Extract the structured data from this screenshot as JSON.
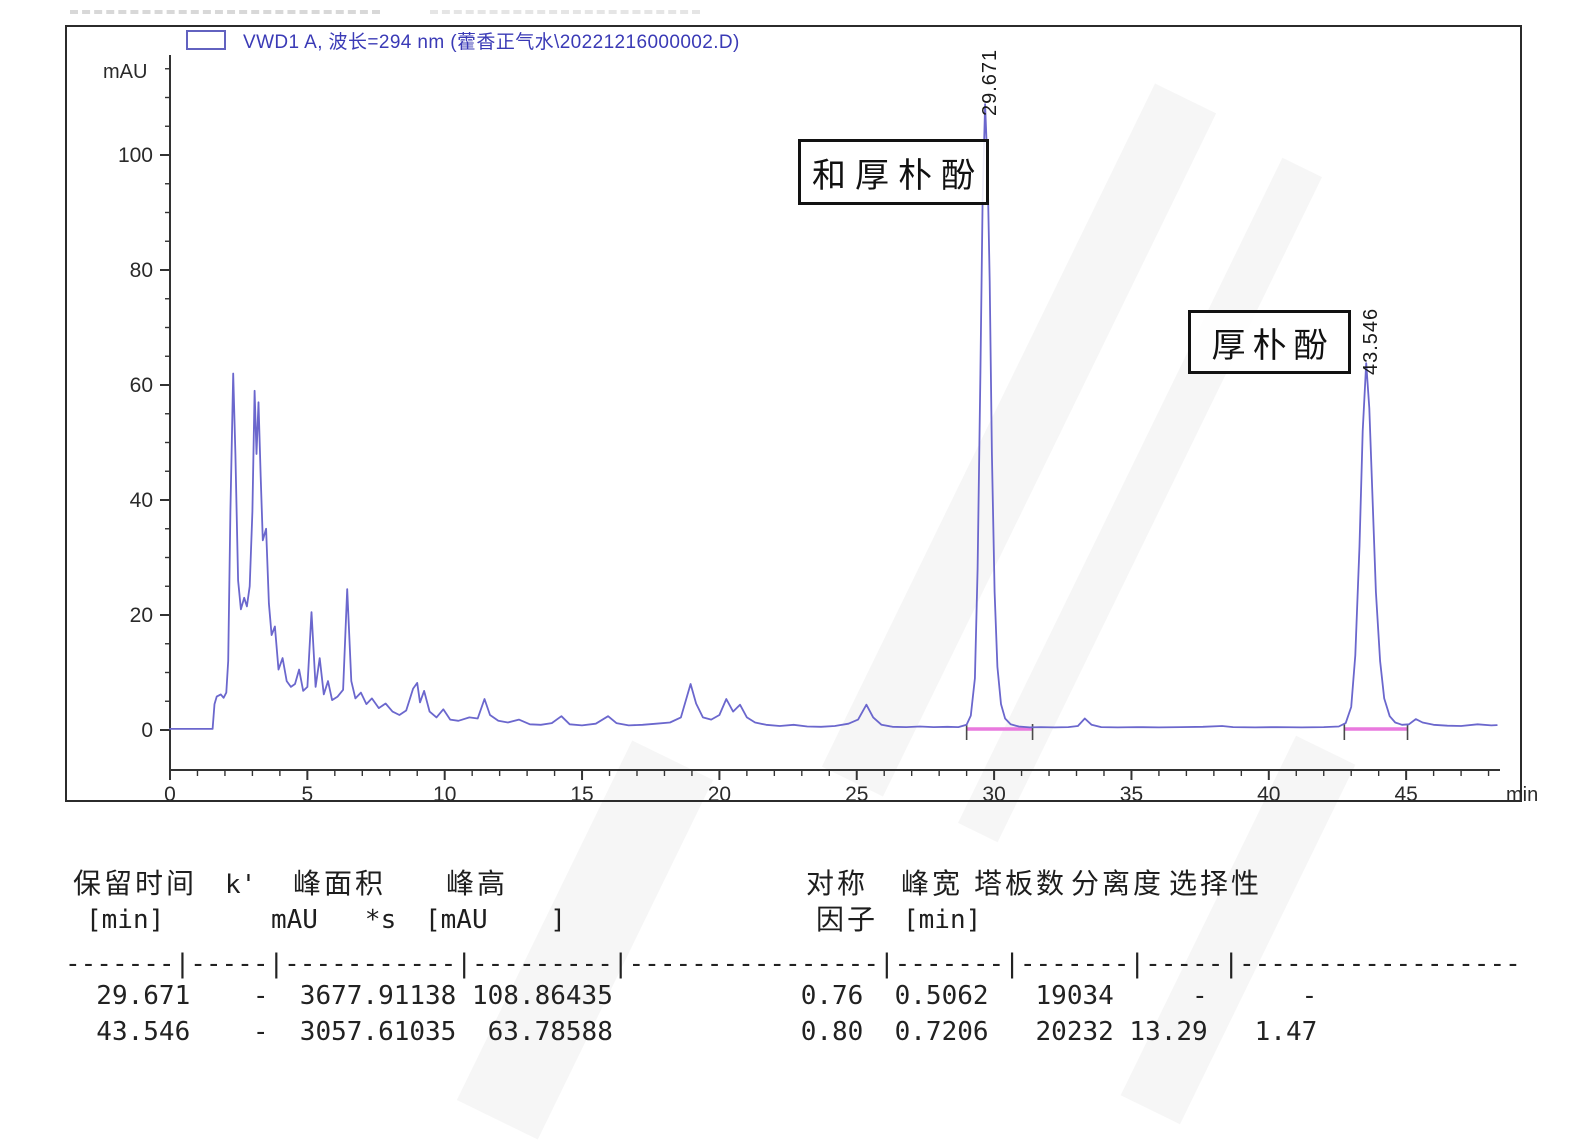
{
  "chart_data": {
    "type": "line",
    "title": "VWD1 A, 波长=294 nm (藿香正气水\\20221216000002.D)",
    "xlabel": "min",
    "ylabel": "mAU",
    "xlim": [
      0,
      48.3
    ],
    "ylim": [
      -2,
      116.5
    ],
    "x_major_ticks": [
      0,
      5,
      10,
      15,
      20,
      25,
      30,
      35,
      40,
      45
    ],
    "y_major_ticks": [
      0,
      20,
      40,
      60,
      80,
      100
    ],
    "x_minor_step": 1,
    "y_minor_step": 5,
    "grid": false,
    "legend_position": "top-left",
    "trace_color": "#6b67cd",
    "integration_color": "#e979de",
    "peaks": [
      {
        "rt": 29.671,
        "rt_label": "29.671",
        "height_mau": 108.86435,
        "compound": "和厚朴酚"
      },
      {
        "rt": 43.546,
        "rt_label": "43.546",
        "height_mau": 63.78588,
        "compound": "厚朴酚"
      }
    ],
    "integration_baselines_min": [
      [
        29.0,
        31.4
      ],
      [
        42.75,
        45.05
      ]
    ],
    "points": [
      [
        0,
        0.2
      ],
      [
        1.55,
        0.2
      ],
      [
        1.62,
        4.5
      ],
      [
        1.7,
        5.8
      ],
      [
        1.85,
        6.2
      ],
      [
        1.95,
        5.6
      ],
      [
        2.05,
        6.5
      ],
      [
        2.12,
        12
      ],
      [
        2.2,
        38
      ],
      [
        2.3,
        62
      ],
      [
        2.38,
        48
      ],
      [
        2.48,
        26
      ],
      [
        2.58,
        21
      ],
      [
        2.7,
        23
      ],
      [
        2.8,
        21.5
      ],
      [
        2.9,
        25
      ],
      [
        3.0,
        38
      ],
      [
        3.08,
        59
      ],
      [
        3.15,
        48
      ],
      [
        3.22,
        57
      ],
      [
        3.3,
        44
      ],
      [
        3.38,
        33
      ],
      [
        3.5,
        35
      ],
      [
        3.6,
        22
      ],
      [
        3.7,
        16.5
      ],
      [
        3.82,
        18
      ],
      [
        3.95,
        10.5
      ],
      [
        4.1,
        12.5
      ],
      [
        4.25,
        8.5
      ],
      [
        4.4,
        7.5
      ],
      [
        4.55,
        8
      ],
      [
        4.7,
        10.5
      ],
      [
        4.85,
        6.8
      ],
      [
        5.0,
        7.5
      ],
      [
        5.15,
        20.5
      ],
      [
        5.3,
        7.5
      ],
      [
        5.45,
        12.5
      ],
      [
        5.6,
        6.2
      ],
      [
        5.75,
        8.5
      ],
      [
        5.9,
        5.2
      ],
      [
        6.1,
        5.8
      ],
      [
        6.3,
        7
      ],
      [
        6.45,
        24.5
      ],
      [
        6.6,
        8.5
      ],
      [
        6.75,
        5.5
      ],
      [
        6.95,
        6.5
      ],
      [
        7.15,
        4.5
      ],
      [
        7.35,
        5.5
      ],
      [
        7.6,
        3.8
      ],
      [
        7.85,
        4.6
      ],
      [
        8.1,
        3.2
      ],
      [
        8.35,
        2.6
      ],
      [
        8.6,
        3.4
      ],
      [
        8.85,
        7.2
      ],
      [
        9.0,
        8.2
      ],
      [
        9.1,
        4.8
      ],
      [
        9.25,
        6.8
      ],
      [
        9.45,
        3.2
      ],
      [
        9.7,
        2.2
      ],
      [
        9.95,
        3.6
      ],
      [
        10.2,
        1.8
      ],
      [
        10.5,
        1.6
      ],
      [
        10.9,
        2.2
      ],
      [
        11.2,
        2
      ],
      [
        11.45,
        5.4
      ],
      [
        11.65,
        2.6
      ],
      [
        11.95,
        1.6
      ],
      [
        12.3,
        1.3
      ],
      [
        12.7,
        1.8
      ],
      [
        13.1,
        1
      ],
      [
        13.5,
        0.9
      ],
      [
        13.9,
        1.2
      ],
      [
        14.25,
        2.4
      ],
      [
        14.55,
        1
      ],
      [
        15.0,
        0.8
      ],
      [
        15.5,
        1.1
      ],
      [
        15.95,
        2.4
      ],
      [
        16.25,
        1.2
      ],
      [
        16.7,
        0.8
      ],
      [
        17.2,
        0.9
      ],
      [
        17.7,
        1.1
      ],
      [
        18.2,
        1.3
      ],
      [
        18.6,
        2.2
      ],
      [
        18.95,
        8
      ],
      [
        19.15,
        4.6
      ],
      [
        19.4,
        2.2
      ],
      [
        19.7,
        1.8
      ],
      [
        20.0,
        2.6
      ],
      [
        20.25,
        5.4
      ],
      [
        20.5,
        3.2
      ],
      [
        20.75,
        4.4
      ],
      [
        21.0,
        2.2
      ],
      [
        21.3,
        1.3
      ],
      [
        21.7,
        0.9
      ],
      [
        22.2,
        0.7
      ],
      [
        22.7,
        0.9
      ],
      [
        23.2,
        0.6
      ],
      [
        23.7,
        0.55
      ],
      [
        24.2,
        0.7
      ],
      [
        24.7,
        1.1
      ],
      [
        25.05,
        1.8
      ],
      [
        25.35,
        4.4
      ],
      [
        25.6,
        2.2
      ],
      [
        25.9,
        0.9
      ],
      [
        26.3,
        0.55
      ],
      [
        26.8,
        0.5
      ],
      [
        27.3,
        0.6
      ],
      [
        27.8,
        0.5
      ],
      [
        28.3,
        0.55
      ],
      [
        28.7,
        0.5
      ],
      [
        29.0,
        0.9
      ],
      [
        29.15,
        2.5
      ],
      [
        29.3,
        9
      ],
      [
        29.4,
        28
      ],
      [
        29.5,
        62
      ],
      [
        29.58,
        92
      ],
      [
        29.671,
        108.86
      ],
      [
        29.76,
        98
      ],
      [
        29.84,
        78
      ],
      [
        29.92,
        48
      ],
      [
        30.02,
        24
      ],
      [
        30.12,
        11
      ],
      [
        30.25,
        4.5
      ],
      [
        30.4,
        2
      ],
      [
        30.6,
        1
      ],
      [
        30.9,
        0.6
      ],
      [
        31.3,
        0.45
      ],
      [
        31.7,
        0.5
      ],
      [
        32.2,
        0.45
      ],
      [
        32.7,
        0.5
      ],
      [
        33.05,
        0.7
      ],
      [
        33.3,
        2
      ],
      [
        33.55,
        0.9
      ],
      [
        33.9,
        0.5
      ],
      [
        34.5,
        0.45
      ],
      [
        35.2,
        0.5
      ],
      [
        36.0,
        0.45
      ],
      [
        36.8,
        0.5
      ],
      [
        37.6,
        0.55
      ],
      [
        38.3,
        0.7
      ],
      [
        38.7,
        0.5
      ],
      [
        39.5,
        0.45
      ],
      [
        40.3,
        0.5
      ],
      [
        41.2,
        0.45
      ],
      [
        42.0,
        0.5
      ],
      [
        42.55,
        0.6
      ],
      [
        42.8,
        1.2
      ],
      [
        43.0,
        4
      ],
      [
        43.15,
        13
      ],
      [
        43.3,
        32
      ],
      [
        43.42,
        52
      ],
      [
        43.546,
        63.79
      ],
      [
        43.66,
        56
      ],
      [
        43.78,
        40
      ],
      [
        43.9,
        24
      ],
      [
        44.05,
        12
      ],
      [
        44.2,
        5.5
      ],
      [
        44.4,
        2.4
      ],
      [
        44.6,
        1.3
      ],
      [
        44.85,
        0.9
      ],
      [
        45.1,
        1
      ],
      [
        45.35,
        1.9
      ],
      [
        45.6,
        1.3
      ],
      [
        46.0,
        0.9
      ],
      [
        46.5,
        0.75
      ],
      [
        47.0,
        0.7
      ],
      [
        47.6,
        1.0
      ],
      [
        48.1,
        0.8
      ],
      [
        48.3,
        0.85
      ]
    ]
  },
  "table": {
    "headers_line1": [
      "保留时间",
      "k'",
      "峰面积",
      "峰高",
      "对称",
      "峰宽",
      "塔板数",
      "分离度",
      "选择性"
    ],
    "headers_line2": [
      "[min]",
      "mAU   *s",
      "[mAU    ]",
      "因子",
      "[min]"
    ],
    "separator": "-------|-----|-----------|---------|----------------|-------|-------|-----|------------------",
    "rows": [
      [
        "29.671",
        "-",
        "3677.91138",
        "108.86435",
        "0.76",
        "0.5062",
        "19034",
        "-",
        "-"
      ],
      [
        "43.546",
        "-",
        "3057.61035",
        "63.78588",
        "0.80",
        "0.7206",
        "20232",
        "13.29",
        "1.47"
      ]
    ]
  }
}
